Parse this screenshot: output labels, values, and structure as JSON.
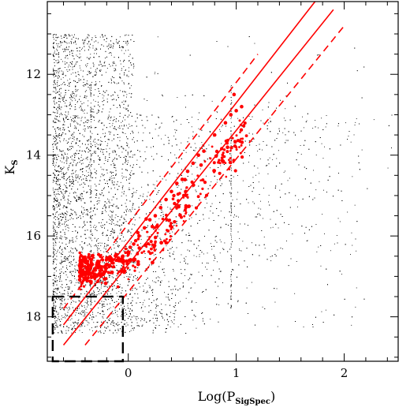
{
  "chart_data": {
    "type": "scatter",
    "title": "",
    "xlabel": "Log(P",
    "xlabel_subscript": "SigSpec",
    "xlabel_close": ")",
    "ylabel": "K",
    "ylabel_subscript": "S",
    "xlim": [
      -0.75,
      2.5
    ],
    "ylim": [
      19.1,
      10.2
    ],
    "y_inverted": true,
    "x_ticks": [
      0,
      1,
      2
    ],
    "x_tick_labels": [
      "0",
      "1",
      "2"
    ],
    "y_ticks": [
      12,
      14,
      16,
      18
    ],
    "y_tick_labels": [
      "12",
      "14",
      "16",
      "18"
    ],
    "grid": false,
    "legend": "none",
    "series": [
      {
        "kind": "background-points",
        "color": "#000000",
        "approx_count": 9000,
        "dense_region_x": [
          -0.7,
          0.3
        ],
        "dense_region_y": [
          10.8,
          18.4
        ],
        "vertical_streak_x": [
          -0.35,
          0.95
        ]
      },
      {
        "kind": "highlighted-points",
        "color": "#ff0000",
        "sample_points": [
          [
            -0.45,
            17.0
          ],
          [
            -0.4,
            16.9
          ],
          [
            -0.35,
            16.8
          ],
          [
            -0.3,
            17.0
          ],
          [
            -0.25,
            16.8
          ],
          [
            -0.2,
            16.7
          ],
          [
            -0.15,
            16.9
          ],
          [
            -0.1,
            16.6
          ],
          [
            -0.05,
            16.5
          ],
          [
            0.0,
            16.4
          ],
          [
            0.05,
            16.2
          ],
          [
            0.1,
            16.0
          ],
          [
            0.15,
            15.8
          ],
          [
            0.2,
            15.6
          ],
          [
            0.25,
            15.5
          ],
          [
            0.3,
            15.3
          ],
          [
            0.35,
            15.1
          ],
          [
            0.4,
            14.9
          ],
          [
            0.45,
            14.7
          ],
          [
            0.5,
            14.6
          ],
          [
            0.55,
            14.4
          ],
          [
            0.6,
            14.2
          ],
          [
            0.65,
            14.0
          ],
          [
            0.7,
            13.9
          ],
          [
            0.8,
            13.5
          ],
          [
            0.9,
            13.2
          ],
          [
            0.95,
            13.0
          ],
          [
            1.0,
            12.9
          ],
          [
            1.05,
            12.8
          ],
          [
            0.98,
            12.5
          ]
        ]
      }
    ],
    "fit_lines": [
      {
        "name": "",
        "style": "solid",
        "color": "#ff0000",
        "x": [
          -0.6,
          1.73
        ],
        "y": [
          18.2,
          10.2
        ]
      },
      {
        "name": "",
        "style": "solid",
        "color": "#ff0000",
        "x": [
          -0.6,
          1.9
        ],
        "y": [
          18.7,
          10.4
        ]
      },
      {
        "name": "",
        "style": "dashed",
        "color": "#ff0000",
        "x": [
          -0.6,
          1.2
        ],
        "y": [
          17.8,
          11.5
        ]
      },
      {
        "name": "",
        "style": "dashed",
        "color": "#ff0000",
        "x": [
          -0.4,
          2.0
        ],
        "y": [
          18.7,
          10.8
        ]
      }
    ],
    "region_box": {
      "style": "dashed",
      "color": "#000000",
      "x": [
        -0.7,
        -0.05
      ],
      "y": [
        17.5,
        19.1
      ]
    }
  }
}
